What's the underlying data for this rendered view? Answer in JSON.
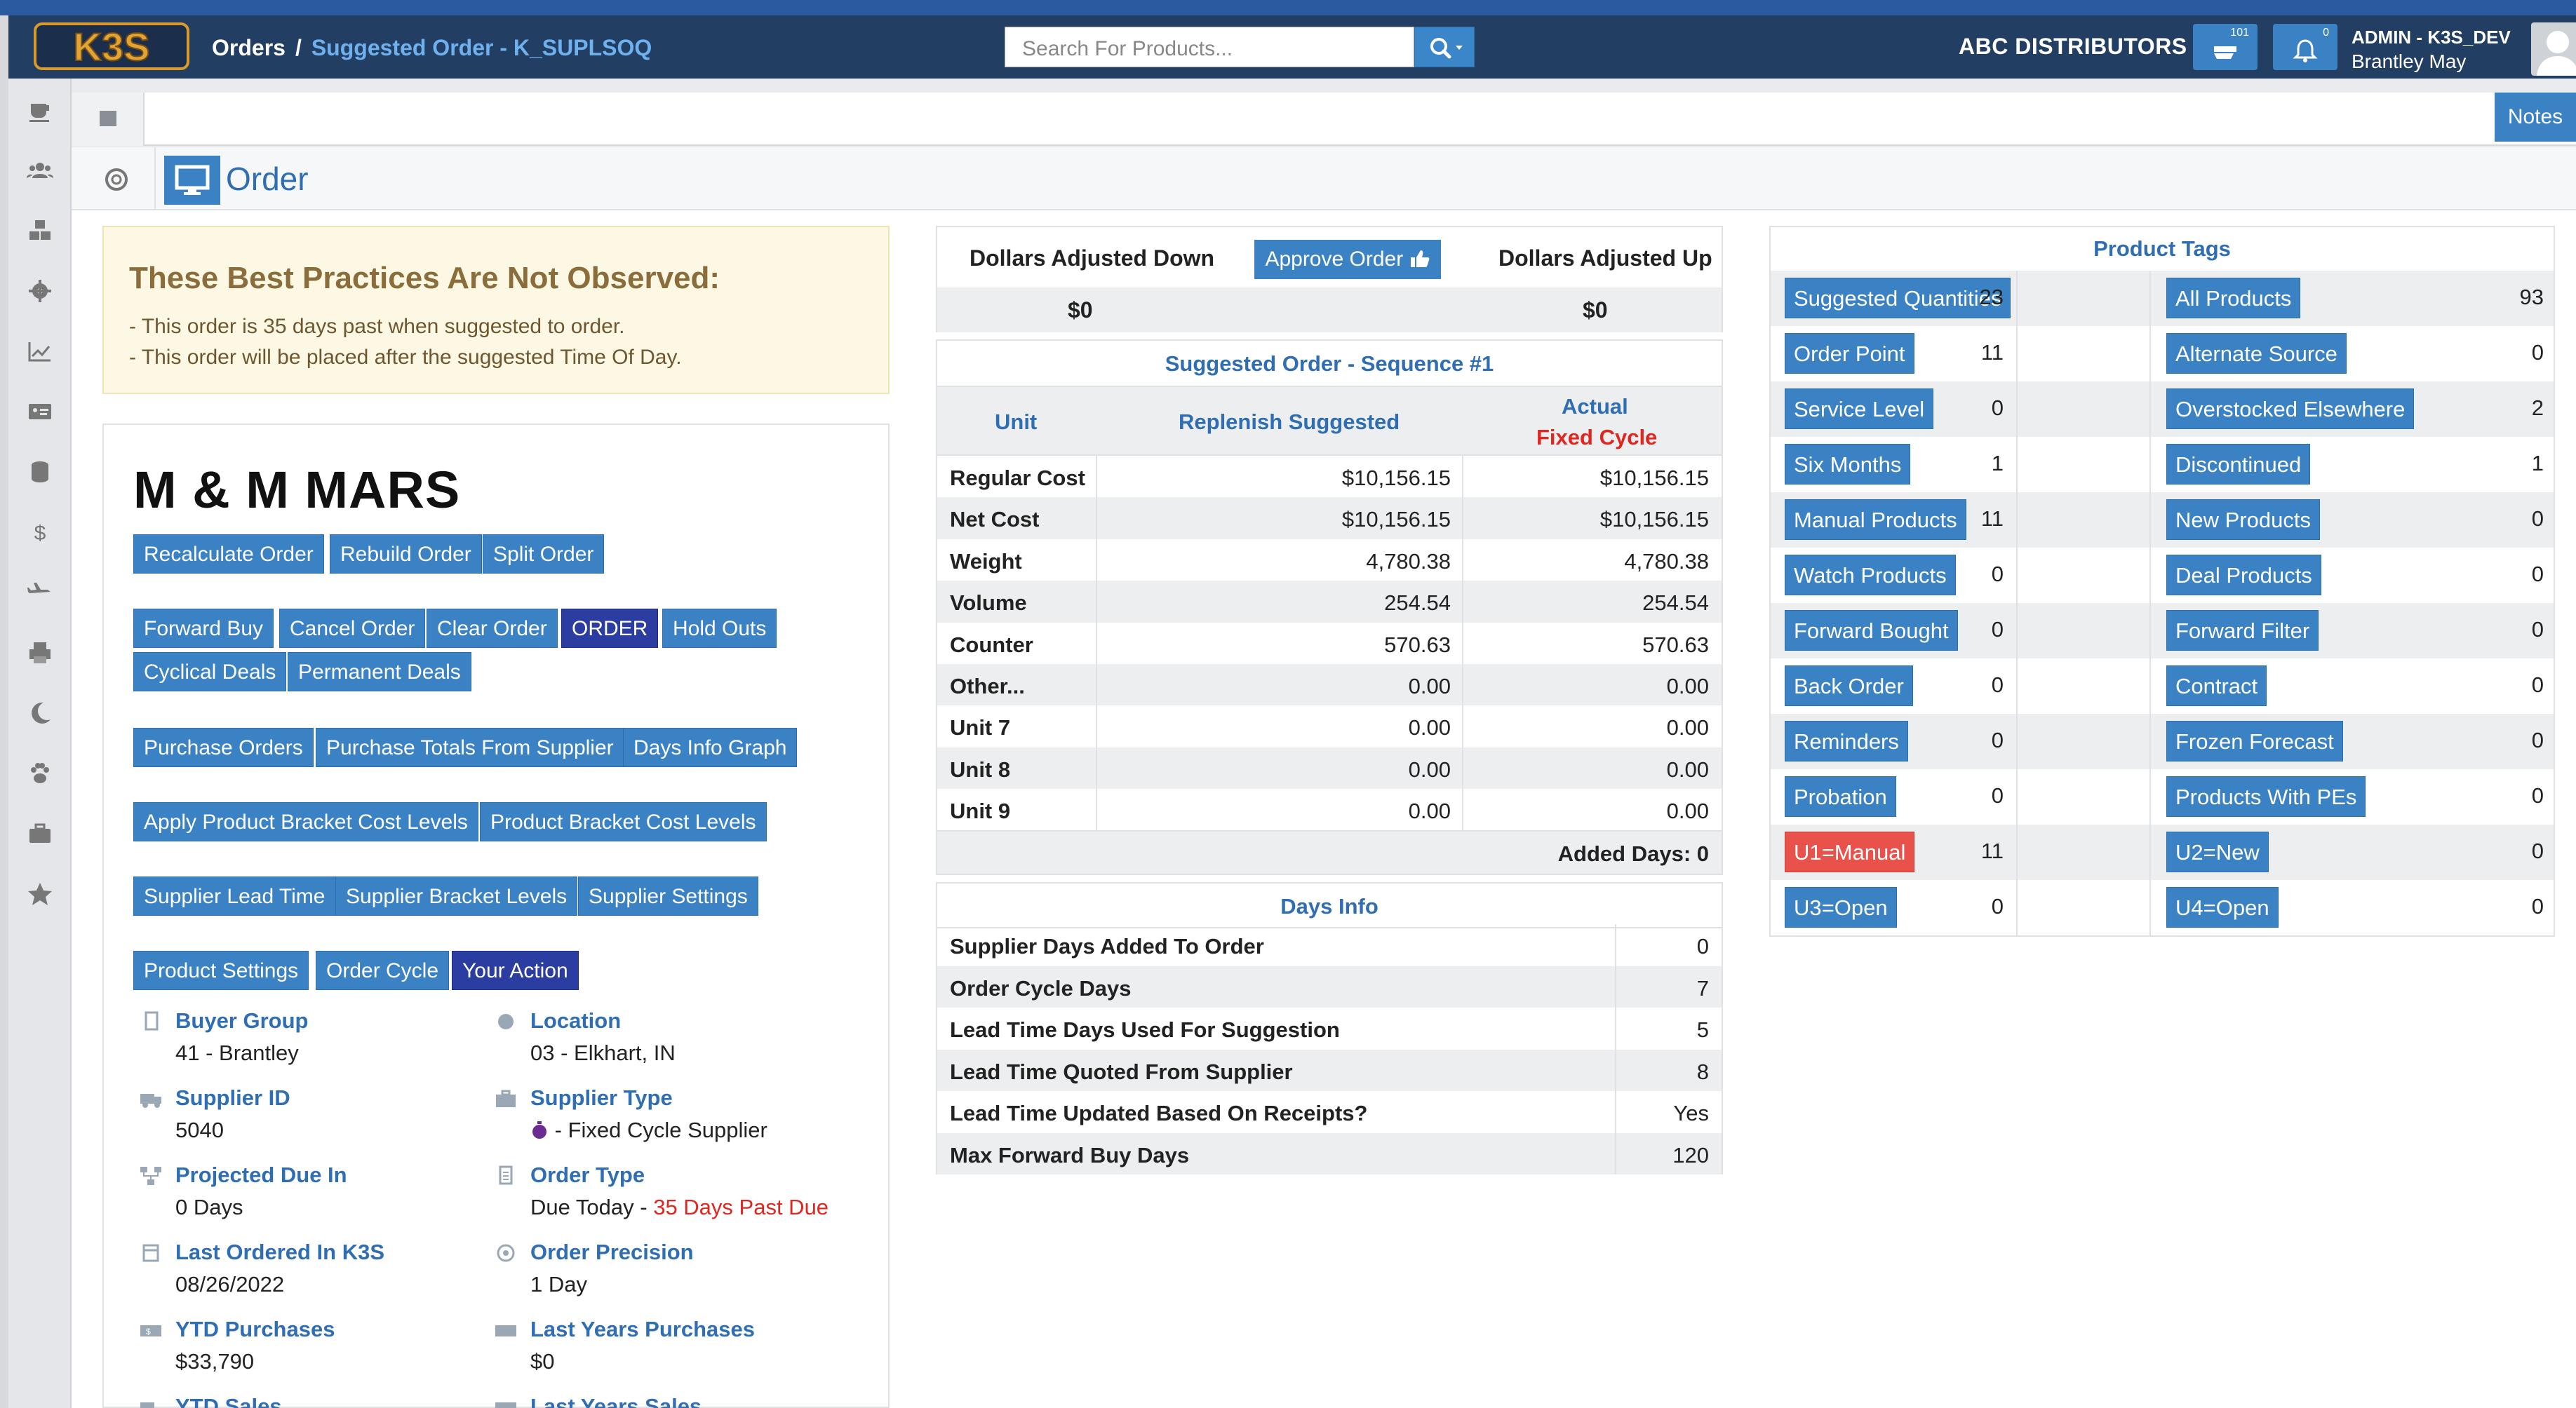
{
  "nav": {
    "breadcrumb_root": "Orders",
    "breadcrumb_sep": "/",
    "breadcrumb_current": "Suggested Order - K_SUPLSOQ",
    "search_placeholder": "Search For Products...",
    "org_name": "ABC DISTRIBUTORS",
    "cart_badge": "101",
    "bell_badge": "0",
    "user_role": "ADMIN - K3S_DEV",
    "user_name": "Brantley May"
  },
  "notes_label": "Notes",
  "order_title": "Order",
  "warning": {
    "title": "These Best Practices Are Not Observed:",
    "line1": "- This order is 35 days past when suggested to order.",
    "line2": "- This order will be placed after the suggested Time Of Day."
  },
  "supplier": {
    "name": "M & M MARS",
    "buttons": {
      "recalculate": "Recalculate Order",
      "rebuild": "Rebuild Order",
      "split": "Split Order",
      "forward_buy": "Forward Buy",
      "cancel": "Cancel Order",
      "clear": "Clear Order",
      "order": "ORDER",
      "hold_outs": "Hold Outs",
      "cyclical": "Cyclical Deals",
      "permanent": "Permanent Deals",
      "purchase_orders": "Purchase Orders",
      "purchase_totals": "Purchase Totals From Supplier",
      "days_info_graph": "Days Info Graph",
      "apply_bracket": "Apply Product Bracket Cost Levels",
      "bracket_levels": "Product Bracket Cost Levels",
      "lead_time": "Supplier Lead Time",
      "supplier_bracket": "Supplier Bracket Levels",
      "supplier_settings": "Supplier Settings",
      "product_settings": "Product Settings",
      "order_cycle": "Order Cycle",
      "your_action": "Your Action"
    },
    "info": {
      "buyer_group_label": "Buyer Group",
      "buyer_group": "41 - Brantley",
      "location_label": "Location",
      "location": "03 - Elkhart, IN",
      "supplier_id_label": "Supplier ID",
      "supplier_id": "5040",
      "supplier_type_label": "Supplier Type",
      "supplier_type": " - Fixed Cycle Supplier",
      "projected_label": "Projected Due In",
      "projected": "0 Days",
      "order_type_label": "Order Type",
      "order_type": "Due Today - ",
      "order_type_late": "35 Days Past Due",
      "last_ordered_label": "Last Ordered In K3S",
      "last_ordered": "08/26/2022",
      "precision_label": "Order Precision",
      "precision": "1 Day",
      "ytd_label": "YTD Purchases",
      "ytd": "$33,790",
      "last_years_label": "Last Years Purchases",
      "last_years": "$0",
      "ytd_sales_label": "YTD Sales",
      "last_years_sales_label": "Last Years Sales"
    }
  },
  "adjust": {
    "down_label": "Dollars Adjusted Down",
    "approve_label": "Approve Order",
    "up_label": "Dollars Adjusted Up",
    "down_value": "$0",
    "up_value": "$0"
  },
  "sequence": {
    "title": "Suggested Order - Sequence #1",
    "col_unit": "Unit",
    "col_replenish": "Replenish Suggested",
    "col_actual": "Actual",
    "col_fixed": "Fixed Cycle",
    "rows": [
      {
        "unit": "Regular Cost",
        "suggested": "$10,156.15",
        "actual": "$10,156.15"
      },
      {
        "unit": "Net Cost",
        "suggested": "$10,156.15",
        "actual": "$10,156.15"
      },
      {
        "unit": "Weight",
        "suggested": "4,780.38",
        "actual": "4,780.38"
      },
      {
        "unit": "Volume",
        "suggested": "254.54",
        "actual": "254.54"
      },
      {
        "unit": "Counter",
        "suggested": "570.63",
        "actual": "570.63"
      },
      {
        "unit": "Other...",
        "suggested": "0.00",
        "actual": "0.00"
      },
      {
        "unit": "Unit 7",
        "suggested": "0.00",
        "actual": "0.00"
      },
      {
        "unit": "Unit 8",
        "suggested": "0.00",
        "actual": "0.00"
      },
      {
        "unit": "Unit 9",
        "suggested": "0.00",
        "actual": "0.00"
      }
    ],
    "added_days": "Added Days:  0"
  },
  "days_info": {
    "title": "Days Info",
    "rows": [
      {
        "label": "Supplier Days Added To Order",
        "value": "0"
      },
      {
        "label": "Order Cycle Days",
        "value": "7"
      },
      {
        "label": "Lead Time Days Used For Suggestion",
        "value": "5"
      },
      {
        "label": "Lead Time Quoted From Supplier",
        "value": "8"
      },
      {
        "label": "Lead Time Updated Based On Receipts?",
        "value": "Yes"
      },
      {
        "label": "Max Forward Buy Days",
        "value": "120"
      }
    ]
  },
  "product_tags": {
    "title": "Product Tags",
    "rows": [
      {
        "l": "Suggested Quantities",
        "lc": "23",
        "r": "All Products",
        "rc": "93"
      },
      {
        "l": "Order Point",
        "lc": "11",
        "r": "Alternate Source",
        "rc": "0"
      },
      {
        "l": "Service Level",
        "lc": "0",
        "r": "Overstocked Elsewhere",
        "rc": "2"
      },
      {
        "l": "Six Months",
        "lc": "1",
        "r": "Discontinued",
        "rc": "1"
      },
      {
        "l": "Manual Products",
        "lc": "11",
        "r": "New Products",
        "rc": "0"
      },
      {
        "l": "Watch Products",
        "lc": "0",
        "r": "Deal Products",
        "rc": "0"
      },
      {
        "l": "Forward Bought",
        "lc": "0",
        "r": "Forward Filter",
        "rc": "0"
      },
      {
        "l": "Back Order",
        "lc": "0",
        "r": "Contract",
        "rc": "0"
      },
      {
        "l": "Reminders",
        "lc": "0",
        "r": "Frozen Forecast",
        "rc": "0"
      },
      {
        "l": "Probation",
        "lc": "0",
        "r": "Products With PEs",
        "rc": "0"
      },
      {
        "l": "U1=Manual",
        "lc": "11",
        "r": "U2=New",
        "rc": "0"
      },
      {
        "l": "U3=Open",
        "lc": "0",
        "r": "U4=Open",
        "rc": "0"
      }
    ]
  },
  "colors": {
    "navbar": "#223e63",
    "accent": "#3b82c4",
    "dark_button": "#2b3da1",
    "alert": "#e8524a"
  }
}
